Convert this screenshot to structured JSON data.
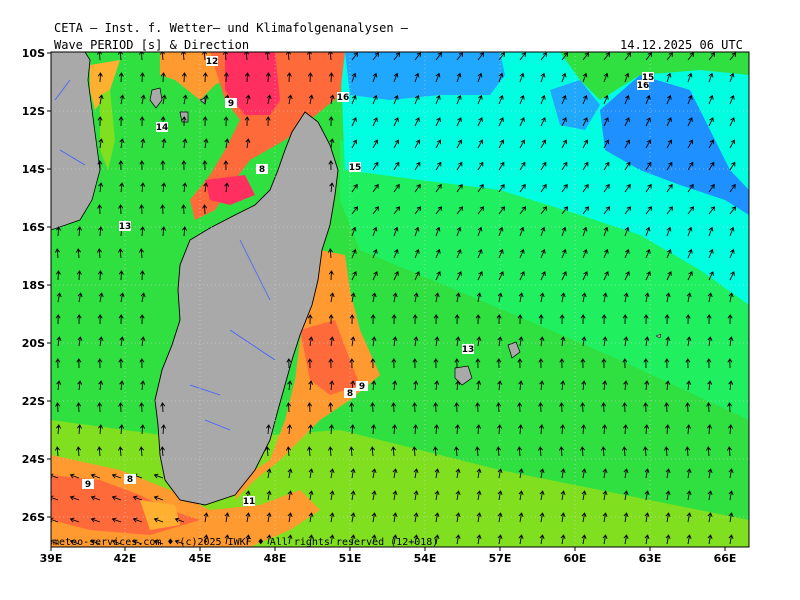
{
  "header": {
    "title": "CETA — Inst. f. Wetter– und Klimafolgenanalysen —",
    "parameter": "Wave_PERIOD [s] & Direction",
    "valid_time": "14.12.2025 06 UTC"
  },
  "credit": "meteo-services.com ♦ (c)2025 IWKF ♦ All rights reserved (12+018)",
  "axes": {
    "longitude_ticks": [
      "39E",
      "42E",
      "45E",
      "48E",
      "51E",
      "54E",
      "57E",
      "60E",
      "63E",
      "66E"
    ],
    "latitude_ticks": [
      "10S",
      "12S",
      "14S",
      "16S",
      "18S",
      "20S",
      "22S",
      "24S",
      "26S"
    ]
  },
  "isolines": [
    {
      "label": "12"
    },
    {
      "label": "9"
    },
    {
      "label": "16"
    },
    {
      "label": "14"
    },
    {
      "label": "8"
    },
    {
      "label": "15"
    },
    {
      "label": "13"
    },
    {
      "label": "16"
    },
    {
      "label": "15"
    },
    {
      "label": "13"
    },
    {
      "label": "8"
    },
    {
      "label": "9"
    },
    {
      "label": "9"
    },
    {
      "label": "8"
    },
    {
      "label": "11"
    }
  ],
  "colors": {
    "land": "#a9a9a9",
    "period_8_9": "#ff3060",
    "period_9_10": "#ff6a3a",
    "period_10_11": "#ff9a30",
    "period_11_12": "#ffb030",
    "period_12_13": "#80e020",
    "period_13_14": "#30e040",
    "period_14_15": "#20f060",
    "period_15_16": "#00ffe0",
    "period_16_plus": "#20a8ff",
    "period_17_plus": "#1e90ff"
  }
}
